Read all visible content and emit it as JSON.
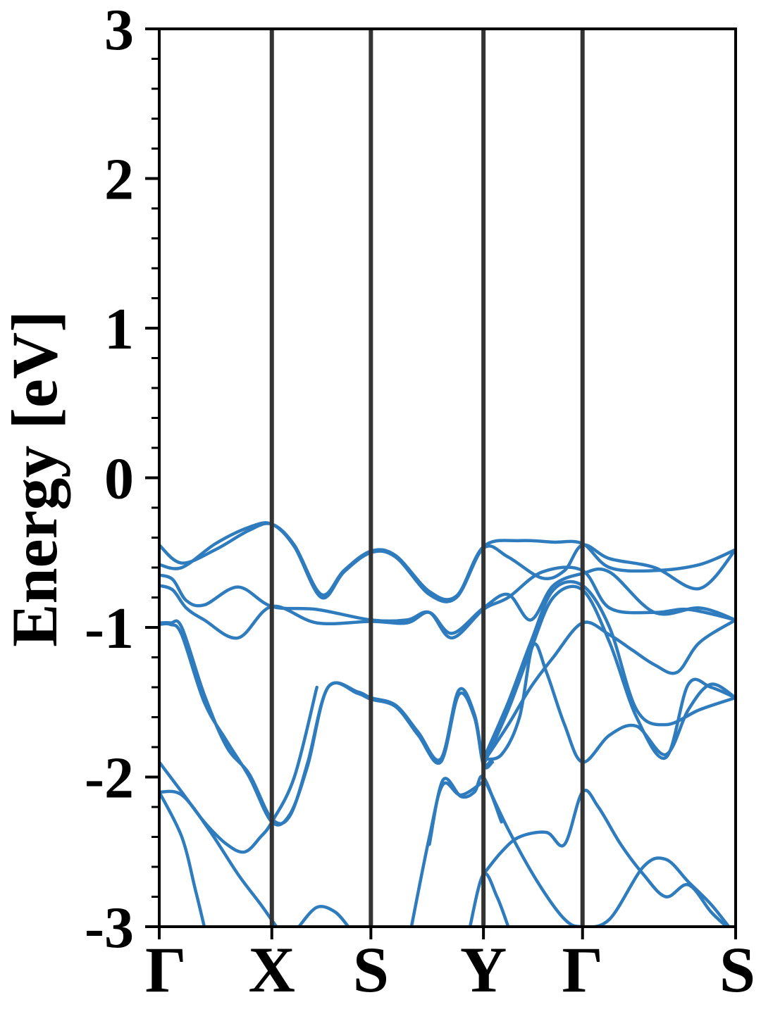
{
  "chart_data": {
    "type": "line",
    "title": "",
    "xlabel": "",
    "ylabel": "Energy [eV]",
    "ylim": [
      -3,
      3
    ],
    "yticks": [
      -3,
      -2,
      -1,
      0,
      1,
      2,
      3
    ],
    "yticklabels": [
      "-3",
      "-2",
      "-1",
      "0",
      "1",
      "2",
      "3"
    ],
    "kpath": [
      {
        "label": "Γ",
        "x": 0.0
      },
      {
        "label": "X",
        "x": 0.5
      },
      {
        "label": "S",
        "x": 0.94
      },
      {
        "label": "Y",
        "x": 1.44
      },
      {
        "label": "Γ",
        "x": 1.88
      },
      {
        "label": "S",
        "x": 2.56
      }
    ],
    "grid": false,
    "legend": "none",
    "colors": {
      "bands": "#2e7bbd",
      "kpath_lines": "#333333",
      "axes": "#000000"
    },
    "series": [
      {
        "x": [
          0.0,
          0.1,
          0.25,
          0.4,
          0.5,
          0.6,
          0.72,
          0.82,
          0.94,
          1.05,
          1.2,
          1.32,
          1.44,
          1.6,
          1.75,
          1.88,
          2.0,
          2.2,
          2.4,
          2.56
        ],
        "y": [
          -0.45,
          -0.57,
          -0.48,
          -0.35,
          -0.31,
          -0.45,
          -0.78,
          -0.62,
          -0.49,
          -0.52,
          -0.76,
          -0.79,
          -0.46,
          -0.42,
          -0.43,
          -0.44,
          -0.6,
          -0.62,
          -0.58,
          -0.48
        ]
      },
      {
        "x": [
          0.0,
          0.1,
          0.25,
          0.4,
          0.5,
          0.6,
          0.72,
          0.82,
          0.94,
          1.05,
          1.2,
          1.32,
          1.44,
          1.55,
          1.7,
          1.8,
          1.88,
          2.0,
          2.2,
          2.4,
          2.56
        ],
        "y": [
          -0.58,
          -0.6,
          -0.44,
          -0.33,
          -0.31,
          -0.46,
          -0.8,
          -0.63,
          -0.5,
          -0.53,
          -0.78,
          -0.8,
          -0.47,
          -0.53,
          -0.67,
          -0.62,
          -0.45,
          -0.54,
          -0.6,
          -0.74,
          -0.48
        ]
      },
      {
        "x": [
          0.0,
          0.06,
          0.12,
          0.2,
          0.35,
          0.5,
          0.7,
          0.94,
          1.1,
          1.2,
          1.3,
          1.44,
          1.55,
          1.7,
          1.88,
          2.0,
          2.2,
          2.35,
          2.56
        ],
        "y": [
          -0.65,
          -0.68,
          -0.82,
          -0.85,
          -0.73,
          -0.86,
          -0.88,
          -0.95,
          -0.95,
          -0.9,
          -1.07,
          -0.88,
          -0.8,
          -0.63,
          -0.62,
          -0.87,
          -0.9,
          -0.88,
          -0.95
        ]
      },
      {
        "x": [
          0.0,
          0.06,
          0.12,
          0.2,
          0.35,
          0.5,
          0.7,
          0.94,
          1.1,
          1.2,
          1.3,
          1.44,
          1.55,
          1.65,
          1.75,
          1.88,
          2.0,
          2.2,
          2.4,
          2.56
        ],
        "y": [
          -0.72,
          -0.75,
          -0.87,
          -0.95,
          -1.07,
          -0.86,
          -0.97,
          -0.96,
          -0.97,
          -0.9,
          -1.04,
          -0.87,
          -0.78,
          -0.95,
          -0.72,
          -0.64,
          -0.63,
          -0.9,
          -0.87,
          -0.95
        ]
      },
      {
        "x": [
          0.0,
          0.05,
          0.1,
          0.2,
          0.3,
          0.4,
          0.5,
          0.58,
          0.66,
          0.75,
          0.88,
          0.94,
          1.05,
          1.15,
          1.25,
          1.33,
          1.4,
          1.44,
          1.48
        ],
        "y": [
          -0.97,
          -0.97,
          -1.0,
          -1.45,
          -1.8,
          -1.98,
          -2.28,
          -2.26,
          -1.9,
          -1.4,
          -1.43,
          -1.47,
          -1.52,
          -1.7,
          -1.88,
          -1.42,
          -1.58,
          -1.9,
          -1.88
        ]
      },
      {
        "x": [
          0.0,
          0.05,
          0.1,
          0.2,
          0.3,
          0.4,
          0.5,
          0.58,
          0.66,
          0.75,
          0.88,
          0.94,
          1.05,
          1.15,
          1.25,
          1.33,
          1.4,
          1.44,
          1.48
        ],
        "y": [
          -0.98,
          -0.98,
          -1.05,
          -1.5,
          -1.76,
          -2.0,
          -2.3,
          -2.25,
          -1.92,
          -1.4,
          -1.44,
          -1.48,
          -1.53,
          -1.72,
          -1.9,
          -1.45,
          -1.6,
          -1.92,
          -1.9
        ]
      },
      {
        "x": [
          1.44,
          1.55,
          1.65,
          1.75,
          1.88,
          2.0,
          2.12,
          2.25,
          2.4,
          2.56
        ],
        "y": [
          -1.88,
          -1.5,
          -1.1,
          -0.75,
          -0.72,
          -1.0,
          -1.55,
          -1.65,
          -1.55,
          -1.47
        ]
      },
      {
        "x": [
          1.44,
          1.55,
          1.65,
          1.75,
          1.88,
          2.0,
          2.12,
          2.25,
          2.35,
          2.45,
          2.56
        ],
        "y": [
          -1.92,
          -1.55,
          -1.15,
          -0.8,
          -0.75,
          -1.1,
          -1.6,
          -1.87,
          -1.38,
          -1.4,
          -1.47
        ]
      },
      {
        "x": [
          1.44,
          1.52,
          1.6,
          1.66,
          1.72,
          1.8,
          1.88,
          2.0,
          2.12,
          2.25,
          2.35,
          2.45,
          2.56
        ],
        "y": [
          -1.88,
          -1.85,
          -1.6,
          -1.12,
          -1.3,
          -1.65,
          -1.9,
          -1.72,
          -1.66,
          -1.85,
          -1.55,
          -1.38,
          -1.47
        ]
      },
      {
        "x": [
          1.44,
          1.55,
          1.65,
          1.75,
          1.88,
          2.0,
          2.1,
          2.2,
          2.3,
          2.4,
          2.56
        ],
        "y": [
          -1.9,
          -1.65,
          -1.4,
          -1.2,
          -0.97,
          -1.05,
          -1.15,
          -1.25,
          -1.3,
          -1.1,
          -0.95
        ]
      },
      {
        "x": [
          0.0,
          0.1,
          0.2,
          0.3,
          0.38,
          0.45,
          0.5,
          0.6,
          0.7
        ],
        "y": [
          -1.9,
          -2.1,
          -2.3,
          -2.45,
          -2.5,
          -2.4,
          -2.3,
          -2.0,
          -1.4
        ]
      },
      {
        "x": [
          0.0,
          0.1,
          0.22,
          0.35,
          0.45,
          0.52
        ],
        "y": [
          -2.1,
          -2.12,
          -2.35,
          -2.65,
          -2.85,
          -3.0
        ]
      },
      {
        "x": [
          0.0,
          0.1,
          0.16,
          0.2
        ],
        "y": [
          -2.1,
          -2.4,
          -2.75,
          -3.0
        ]
      },
      {
        "x": [
          0.62,
          0.7,
          0.78,
          0.84
        ],
        "y": [
          -3.0,
          -2.87,
          -2.9,
          -3.0
        ]
      },
      {
        "x": [
          1.12,
          1.2,
          1.26,
          1.34,
          1.44
        ],
        "y": [
          -3.0,
          -2.4,
          -2.05,
          -2.12,
          -2.03
        ]
      },
      {
        "x": [
          1.2,
          1.26,
          1.34,
          1.4,
          1.44,
          1.52
        ],
        "y": [
          -2.45,
          -2.02,
          -2.13,
          -2.1,
          -2.0,
          -2.3
        ]
      },
      {
        "x": [
          1.44,
          1.55,
          1.68,
          1.8,
          1.88,
          2.0,
          2.15,
          2.25,
          2.35,
          2.45,
          2.53
        ],
        "y": [
          -2.0,
          -2.35,
          -2.7,
          -2.95,
          -3.0,
          -2.95,
          -2.6,
          -2.55,
          -2.7,
          -2.85,
          -3.0
        ]
      },
      {
        "x": [
          1.44,
          1.52,
          1.6,
          1.72,
          1.8,
          1.88,
          1.95,
          2.05,
          2.15,
          2.25,
          2.35,
          2.45,
          2.52
        ],
        "y": [
          -2.65,
          -2.5,
          -2.4,
          -2.37,
          -2.45,
          -2.1,
          -2.2,
          -2.45,
          -2.65,
          -2.8,
          -2.72,
          -2.9,
          -3.0
        ]
      },
      {
        "x": [
          1.38,
          1.44,
          1.5,
          1.55
        ],
        "y": [
          -3.0,
          -2.65,
          -2.8,
          -3.0
        ]
      }
    ]
  }
}
